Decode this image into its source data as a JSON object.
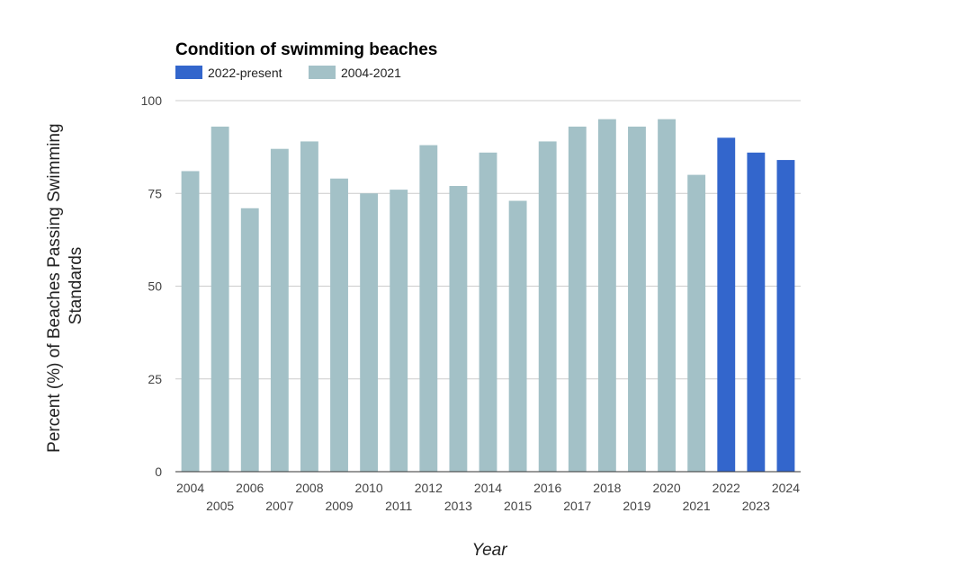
{
  "chart_data": {
    "type": "bar",
    "title": "Condition of swimming beaches",
    "xlabel": "Year",
    "ylabel": [
      "Percent (%) of Beaches Passing Swimming",
      "Standards"
    ],
    "ylim": [
      0,
      100
    ],
    "yticks": [
      "0",
      "25",
      "50",
      "75",
      "100"
    ],
    "grid": true,
    "legend_position": "top-left",
    "legend": [
      {
        "label": "2022-present",
        "color": "#3366cc"
      },
      {
        "label": "2004-2021",
        "color": "#a3c1c7"
      }
    ],
    "categories": [
      "2004",
      "2005",
      "2006",
      "2007",
      "2008",
      "2009",
      "2010",
      "2011",
      "2012",
      "2013",
      "2014",
      "2015",
      "2016",
      "2017",
      "2018",
      "2019",
      "2020",
      "2021",
      "2022",
      "2023",
      "2024"
    ],
    "series": [
      {
        "name": "2004-2021",
        "color": "#a3c1c7",
        "values": [
          81,
          93,
          71,
          87,
          89,
          79,
          75,
          76,
          88,
          77,
          86,
          73,
          89,
          93,
          95,
          93,
          95,
          80,
          null,
          null,
          null
        ]
      },
      {
        "name": "2022-present",
        "color": "#3366cc",
        "values": [
          null,
          null,
          null,
          null,
          null,
          null,
          null,
          null,
          null,
          null,
          null,
          null,
          null,
          null,
          null,
          null,
          null,
          null,
          90,
          86,
          84
        ]
      }
    ]
  }
}
